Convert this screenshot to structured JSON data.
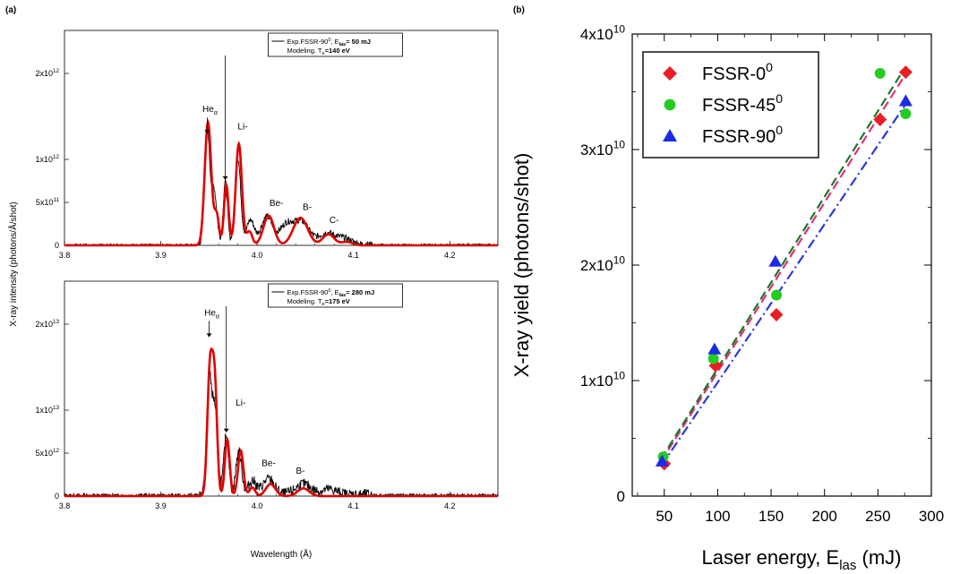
{
  "panel_labels": {
    "a": "(a)",
    "b": "(b)"
  },
  "colors": {
    "experiment": "#000000",
    "model": "#e00000",
    "fssr0": "#e81e25",
    "fssr45": "#22cc22",
    "fssr90": "#1c2be6",
    "fit0": "#e0307a",
    "fit45": "#1a7a2a",
    "fit90": "#2a3ad8"
  },
  "chart_data": [
    {
      "id": "top-spectrum",
      "type": "line",
      "panel": "(a)",
      "xlim": [
        3.8,
        4.25
      ],
      "ylim": [
        0,
        2500000000000.0
      ],
      "x_ticks": [
        "3.8",
        "3.9",
        "4.0",
        "4.1",
        "4.2"
      ],
      "x_tick_values": [
        3.8,
        3.9,
        4.0,
        4.1,
        4.2
      ],
      "y_tick_values": [
        0,
        500000000000.0,
        1000000000000.0,
        2000000000000.0
      ],
      "y_tick_labels": [
        {
          "base": "0",
          "exp": ""
        },
        {
          "base": "5x10",
          "exp": "11"
        },
        {
          "base": "1x10",
          "exp": "12"
        },
        {
          "base": "2x10",
          "exp": "12"
        }
      ],
      "legend": {
        "exp": {
          "text": "Exp.FSSR-90",
          "sup": "0",
          "mid": ", E",
          "sub": "las",
          "end": "= 50 mJ"
        },
        "model": {
          "text": "Modeling. T",
          "sub": "e",
          "end": "=140 eV"
        }
      },
      "annotations": [
        {
          "text": "He",
          "sub": "α",
          "x": 3.951,
          "y": 1550000000000.0,
          "arrow": true
        },
        {
          "text": "Li-",
          "x": 3.985,
          "y": 1350000000000.0
        },
        {
          "text": "Be-",
          "x": 4.02,
          "y": 460000000000.0
        },
        {
          "text": "B-",
          "x": 4.052,
          "y": 410000000000.0
        },
        {
          "text": "C-",
          "x": 4.08,
          "y": 260000000000.0
        }
      ],
      "extra_arrow_x": 3.967,
      "model_peaks": [
        {
          "x": 3.949,
          "a": 1430000000000.0,
          "w": 0.0034
        },
        {
          "x": 3.958,
          "a": 350000000000.0,
          "w": 0.0025
        },
        {
          "x": 3.968,
          "a": 700000000000.0,
          "w": 0.0024
        },
        {
          "x": 3.981,
          "a": 1180000000000.0,
          "w": 0.0032
        },
        {
          "x": 3.992,
          "a": 160000000000.0,
          "w": 0.003
        },
        {
          "x": 4.012,
          "a": 345000000000.0,
          "w": 0.0055
        },
        {
          "x": 4.045,
          "a": 320000000000.0,
          "w": 0.0075
        },
        {
          "x": 4.074,
          "a": 130000000000.0,
          "w": 0.006
        },
        {
          "x": 4.093,
          "a": 40000000000.0,
          "w": 0.006
        }
      ],
      "exp_peaks": [
        {
          "x": 3.948,
          "a": 1350000000000.0,
          "w": 0.0025
        },
        {
          "x": 3.955,
          "a": 650000000000.0,
          "w": 0.003
        },
        {
          "x": 3.967,
          "a": 720000000000.0,
          "w": 0.0022
        },
        {
          "x": 3.98,
          "a": 1000000000000.0,
          "w": 0.003
        },
        {
          "x": 3.993,
          "a": 280000000000.0,
          "w": 0.004
        },
        {
          "x": 4.01,
          "a": 320000000000.0,
          "w": 0.006
        },
        {
          "x": 4.03,
          "a": 220000000000.0,
          "w": 0.007
        },
        {
          "x": 4.046,
          "a": 260000000000.0,
          "w": 0.008
        },
        {
          "x": 4.072,
          "a": 130000000000.0,
          "w": 0.008
        },
        {
          "x": 4.09,
          "a": 70000000000.0,
          "w": 0.008
        }
      ],
      "exp_noise": 22000000000.0,
      "seed": 7
    },
    {
      "id": "bottom-spectrum",
      "type": "line",
      "panel": "(a)",
      "xlim": [
        3.8,
        4.25
      ],
      "ylim": [
        0,
        25000000000000.0
      ],
      "x_ticks": [
        "3.8",
        "3.9",
        "4.0",
        "4.1",
        "4.2"
      ],
      "x_tick_values": [
        3.8,
        3.9,
        4.0,
        4.1,
        4.2
      ],
      "y_tick_values": [
        0,
        5000000000000.0,
        10000000000000.0,
        20000000000000.0
      ],
      "y_tick_labels": [
        {
          "base": "0",
          "exp": ""
        },
        {
          "base": "5x10",
          "exp": "12"
        },
        {
          "base": "1x10",
          "exp": "13"
        },
        {
          "base": "2x10",
          "exp": "13"
        }
      ],
      "xlabel": "Wavelength (Å)",
      "ylabel": "X-ray intensity (photons/Å/shot)",
      "legend": {
        "exp": {
          "text": "Exp.FSSR-90",
          "sup": "0",
          "mid": ", E",
          "sub": "las",
          "end": "= 280 mJ"
        },
        "model": {
          "text": "Modeling. T",
          "sub": "e",
          "end": "=175 eV"
        }
      },
      "annotations": [
        {
          "text": "He",
          "sub": "α",
          "x": 3.953,
          "y": 21000000000000.0,
          "arrow": true
        },
        {
          "text": "Li-",
          "x": 3.983,
          "y": 10500000000000.0
        },
        {
          "text": "Be-",
          "x": 4.012,
          "y": 3500000000000.0
        },
        {
          "text": "B-",
          "x": 4.045,
          "y": 2600000000000.0
        }
      ],
      "extra_arrow_x": 3.968,
      "model_peaks": [
        {
          "x": 3.951,
          "a": 14500000000000.0,
          "w": 0.0027
        },
        {
          "x": 3.956,
          "a": 12500000000000.0,
          "w": 0.0025
        },
        {
          "x": 3.969,
          "a": 6600000000000.0,
          "w": 0.0025
        },
        {
          "x": 3.983,
          "a": 5300000000000.0,
          "w": 0.0028
        },
        {
          "x": 3.995,
          "a": 1000000000000.0,
          "w": 0.003
        },
        {
          "x": 4.014,
          "a": 1400000000000.0,
          "w": 0.005
        },
        {
          "x": 4.048,
          "a": 900000000000.0,
          "w": 0.006
        }
      ],
      "exp_peaks": [
        {
          "x": 3.95,
          "a": 12500000000000.0,
          "w": 0.0025
        },
        {
          "x": 3.956,
          "a": 10000000000000.0,
          "w": 0.003
        },
        {
          "x": 3.968,
          "a": 7000000000000.0,
          "w": 0.0025
        },
        {
          "x": 3.981,
          "a": 5000000000000.0,
          "w": 0.003
        },
        {
          "x": 3.995,
          "a": 1600000000000.0,
          "w": 0.004
        },
        {
          "x": 4.012,
          "a": 1800000000000.0,
          "w": 0.006
        },
        {
          "x": 4.048,
          "a": 1200000000000.0,
          "w": 0.008
        },
        {
          "x": 4.075,
          "a": 600000000000.0,
          "w": 0.008
        }
      ],
      "exp_noise": 360000000000.0,
      "seed": 13
    },
    {
      "id": "yield-scatter",
      "type": "scatter",
      "panel": "(b)",
      "xlim": [
        20,
        300
      ],
      "ylim": [
        0,
        40000000000.0
      ],
      "x_ticks": [
        "50",
        "100",
        "150",
        "200",
        "250",
        "300"
      ],
      "x_tick_values": [
        50,
        100,
        150,
        200,
        250,
        300
      ],
      "y_tick_values": [
        0,
        10000000000.0,
        20000000000.0,
        30000000000.0,
        40000000000.0
      ],
      "y_tick_labels": [
        {
          "base": "0",
          "exp": ""
        },
        {
          "base": "1x10",
          "exp": "10"
        },
        {
          "base": "2x10",
          "exp": "10"
        },
        {
          "base": "3x10",
          "exp": "10"
        },
        {
          "base": "4x10",
          "exp": "10"
        }
      ],
      "xlabel": {
        "text": "Laser energy, E",
        "sub": "las",
        "end": " (mJ)"
      },
      "ylabel": "X-ray yield (photons/shot)",
      "legend_position": "top-left",
      "series": [
        {
          "name": "FSSR-0",
          "sup": "0",
          "marker": "diamond",
          "color": "#e81e25",
          "x": [
            50,
            98,
            155,
            252,
            276
          ],
          "y": [
            2800000000.0,
            11300000000.0,
            15700000000.0,
            32600000000.0,
            36700000000.0
          ],
          "fit": [
            [
              47,
              3000000000.0
            ],
            [
              275,
              36400000000.0
            ]
          ],
          "fit_color": "#e0307a",
          "dash": "10 5"
        },
        {
          "name": "FSSR-45",
          "sup": "0",
          "marker": "circle",
          "color": "#22cc22",
          "x": [
            49,
            96,
            155,
            252,
            276
          ],
          "y": [
            3400000000.0,
            11900000000.0,
            17400000000.0,
            36600000000.0,
            33100000000.0
          ],
          "fit": [
            [
              47,
              3200000000.0
            ],
            [
              272,
              36600000000.0
            ]
          ],
          "fit_color": "#1a7a2a",
          "dash": "10 5"
        },
        {
          "name": "FSSR-90",
          "sup": "0",
          "marker": "triangle",
          "color": "#1c2be6",
          "x": [
            48,
            97,
            154,
            276
          ],
          "y": [
            3000000000.0,
            12700000000.0,
            20300000000.0,
            34200000000.0
          ],
          "fit": [
            [
              47,
              2600000000.0
            ],
            [
              278,
              34200000000.0
            ]
          ],
          "fit_color": "#2a3ad8",
          "dash": "11 4 2 4"
        }
      ]
    }
  ]
}
